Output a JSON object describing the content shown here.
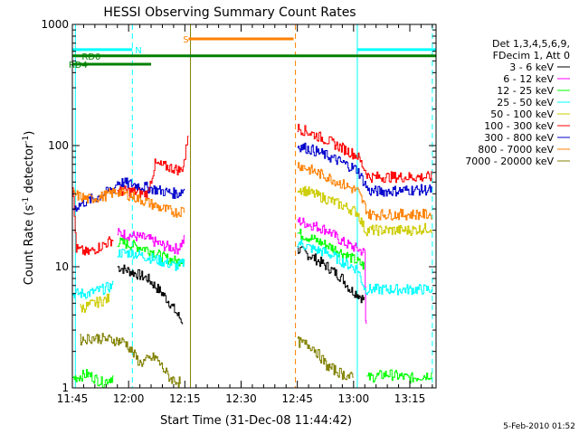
{
  "chart_data": {
    "type": "line",
    "title": "HESSI Observing Summary Count Rates",
    "xlabel": "Start Time (31-Dec-08 11:44:42)",
    "ylabel_main": "Count Rate (s",
    "ylabel_sup1": "-1",
    "ylabel_mid": " detector",
    "ylabel_sup2": "-1",
    "ylabel_end": ")",
    "y_scale": "log",
    "ylim": [
      1,
      1000
    ],
    "xlim_minutes": [
      0,
      97
    ],
    "x_ticks": [
      "11:45",
      "12:00",
      "12:15",
      "12:30",
      "12:45",
      "13:00",
      "13:15"
    ],
    "y_ticks": [
      "1",
      "10",
      "100",
      "1000"
    ],
    "date_stamp": "5-Feb-2010 01:52",
    "legend": {
      "header1": "Det 1,3,4,5,6,9,",
      "header2": "FDecim 1, Att 0",
      "entries": [
        {
          "label": "3 - 6 keV",
          "color": "#000000"
        },
        {
          "label": "6 - 12 keV",
          "color": "#ff00ff"
        },
        {
          "label": "12 - 25 keV",
          "color": "#00ff00"
        },
        {
          "label": "25 - 50 keV",
          "color": "#00ffff"
        },
        {
          "label": "50 - 100 keV",
          "color": "#cccc00"
        },
        {
          "label": "100 - 300 keV",
          "color": "#ff0000"
        },
        {
          "label": "300 - 800 keV",
          "color": "#0000cc"
        },
        {
          "label": "800 - 7000 keV",
          "color": "#ff8000"
        },
        {
          "label": "7000 - 20000 keV",
          "color": "#808000"
        }
      ]
    },
    "flags": [
      {
        "label": "N",
        "color": "#00ffff",
        "y": 620,
        "segments": [
          [
            0,
            16
          ],
          [
            76,
            97
          ]
        ]
      },
      {
        "label": "S",
        "color": "#ff8000",
        "y": 760,
        "segments": [
          [
            31,
            59
          ]
        ]
      },
      {
        "label": "RD0",
        "color": "#008000",
        "y": 550,
        "segments": [
          [
            0,
            97
          ]
        ]
      },
      {
        "label": "RD4",
        "color": "#008000",
        "y": 470,
        "segments": [
          [
            0,
            21
          ]
        ]
      }
    ],
    "orbit_lines": [
      {
        "x": 0.8,
        "color": "#00ffff",
        "dash": false
      },
      {
        "x": 16.0,
        "color": "#00ffff",
        "dash": true
      },
      {
        "x": 31.5,
        "color": "#808000",
        "dash": false
      },
      {
        "x": 59.5,
        "color": "#ff8000",
        "dash": true
      },
      {
        "x": 76.0,
        "color": "#00ffff",
        "dash": false
      },
      {
        "x": 96.0,
        "color": "#00ffff",
        "dash": true
      }
    ],
    "series": [
      {
        "name": "3 - 6 keV",
        "color": "#000000",
        "segments": [
          [
            [
              12,
              10
            ],
            [
              16,
              9
            ],
            [
              20,
              8
            ],
            [
              24,
              6
            ],
            [
              26,
              5
            ],
            [
              28,
              4
            ],
            [
              29.5,
              3.5
            ]
          ],
          [
            [
              60,
              14
            ],
            [
              64,
              12
            ],
            [
              68,
              10
            ],
            [
              72,
              8
            ],
            [
              74,
              6.5
            ],
            [
              76,
              6
            ],
            [
              78,
              5.2
            ]
          ]
        ]
      },
      {
        "name": "6 - 12 keV",
        "color": "#ff00ff",
        "segments": [
          [
            [
              12,
              19
            ],
            [
              16,
              18
            ],
            [
              20,
              17
            ],
            [
              24,
              15
            ],
            [
              28,
              14
            ],
            [
              30,
              17
            ]
          ],
          [
            [
              60,
              24
            ],
            [
              64,
              22
            ],
            [
              68,
              20
            ],
            [
              72,
              16
            ],
            [
              76,
              14
            ],
            [
              78,
              13
            ],
            [
              78.2,
              3.5
            ],
            [
              78.5,
              3.5
            ]
          ]
        ]
      },
      {
        "name": "12 - 25 keV",
        "color": "#00ff00",
        "segments": [
          [
            [
              12,
              16
            ],
            [
              16,
              15
            ],
            [
              20,
              14
            ],
            [
              24,
              12
            ],
            [
              28,
              11
            ],
            [
              30,
              12
            ]
          ],
          [
            [
              60,
              19
            ],
            [
              64,
              17
            ],
            [
              68,
              15
            ],
            [
              72,
              13
            ],
            [
              76,
              11
            ],
            [
              78,
              10
            ]
          ],
          [
            [
              0,
              1.2
            ],
            [
              4,
              1.3
            ],
            [
              8,
              1.1
            ],
            [
              11,
              1.25
            ]
          ],
          [
            [
              78.5,
              1.2
            ],
            [
              84,
              1.3
            ],
            [
              90,
              1.2
            ],
            [
              96,
              1.3
            ]
          ]
        ]
      },
      {
        "name": "25 - 50 keV",
        "color": "#00ffff",
        "segments": [
          [
            [
              0,
              6
            ],
            [
              4,
              6
            ],
            [
              8,
              6.5
            ],
            [
              11,
              7
            ]
          ],
          [
            [
              12,
              13
            ],
            [
              16,
              13
            ],
            [
              20,
              12
            ],
            [
              24,
              11
            ],
            [
              28,
              10
            ],
            [
              30,
              11
            ]
          ],
          [
            [
              60,
              16
            ],
            [
              64,
              14
            ],
            [
              68,
              13
            ],
            [
              72,
              11
            ],
            [
              76,
              9.5
            ],
            [
              78,
              6.5
            ],
            [
              84,
              6.5
            ],
            [
              90,
              6.5
            ],
            [
              96,
              6.5
            ]
          ]
        ]
      },
      {
        "name": "50 - 100 keV",
        "color": "#cccc00",
        "segments": [
          [
            [
              2,
              4.5
            ],
            [
              6,
              5
            ],
            [
              10,
              5.5
            ]
          ],
          [
            [
              60,
              45
            ],
            [
              64,
              40
            ],
            [
              68,
              36
            ],
            [
              72,
              32
            ],
            [
              76,
              28
            ],
            [
              78,
              20
            ],
            [
              84,
              20
            ],
            [
              90,
              20
            ],
            [
              96,
              21
            ]
          ]
        ]
      },
      {
        "name": "100 - 300 keV",
        "color": "#ff0000",
        "segments": [
          [
            [
              0,
              48
            ],
            [
              1,
              14
            ],
            [
              4,
              13
            ],
            [
              8,
              15
            ],
            [
              11,
              17
            ]
          ],
          [
            [
              12,
              42
            ],
            [
              16,
              42
            ],
            [
              20,
              40
            ],
            [
              22,
              70
            ],
            [
              26,
              66
            ],
            [
              29,
              62
            ],
            [
              30,
              80
            ],
            [
              31,
              145
            ]
          ],
          [
            [
              60,
              140
            ],
            [
              64,
              125
            ],
            [
              68,
              110
            ],
            [
              72,
              95
            ],
            [
              76,
              82
            ],
            [
              79,
              55
            ],
            [
              84,
              55
            ],
            [
              90,
              55
            ],
            [
              96,
              55
            ]
          ]
        ]
      },
      {
        "name": "300 - 800 keV",
        "color": "#0000cc",
        "segments": [
          [
            [
              0,
              30
            ],
            [
              3,
              34
            ],
            [
              7,
              38
            ],
            [
              11,
              44
            ],
            [
              12,
              50
            ],
            [
              16,
              48
            ],
            [
              20,
              45
            ],
            [
              24,
              42
            ],
            [
              28,
              40
            ],
            [
              30,
              44
            ]
          ],
          [
            [
              60,
              100
            ],
            [
              64,
              92
            ],
            [
              68,
              82
            ],
            [
              72,
              72
            ],
            [
              76,
              63
            ],
            [
              79,
              42
            ],
            [
              84,
              42
            ],
            [
              90,
              43
            ],
            [
              96,
              43
            ]
          ]
        ]
      },
      {
        "name": "800 - 7000 keV",
        "color": "#ff8000",
        "segments": [
          [
            [
              0,
              40
            ],
            [
              4,
              36
            ],
            [
              8,
              38
            ],
            [
              12,
              42
            ],
            [
              16,
              38
            ],
            [
              20,
              34
            ],
            [
              24,
              30
            ],
            [
              28,
              28
            ],
            [
              30,
              30
            ]
          ],
          [
            [
              60,
              70
            ],
            [
              64,
              62
            ],
            [
              68,
              55
            ],
            [
              72,
              48
            ],
            [
              76,
              42
            ],
            [
              79,
              27
            ],
            [
              84,
              27
            ],
            [
              90,
              27
            ],
            [
              96,
              27
            ]
          ]
        ]
      },
      {
        "name": "7000 - 20000 keV",
        "color": "#808000",
        "segments": [
          [
            [
              2,
              2.5
            ],
            [
              6,
              2.6
            ],
            [
              10,
              2.5
            ],
            [
              14,
              2.4
            ],
            [
              18,
              1.6
            ],
            [
              22,
              1.8
            ],
            [
              26,
              1.2
            ],
            [
              29,
              1.1
            ]
          ],
          [
            [
              60,
              2.4
            ],
            [
              64,
              2.2
            ],
            [
              68,
              1.5
            ],
            [
              72,
              1.3
            ],
            [
              75,
              1.2
            ]
          ]
        ]
      }
    ]
  }
}
